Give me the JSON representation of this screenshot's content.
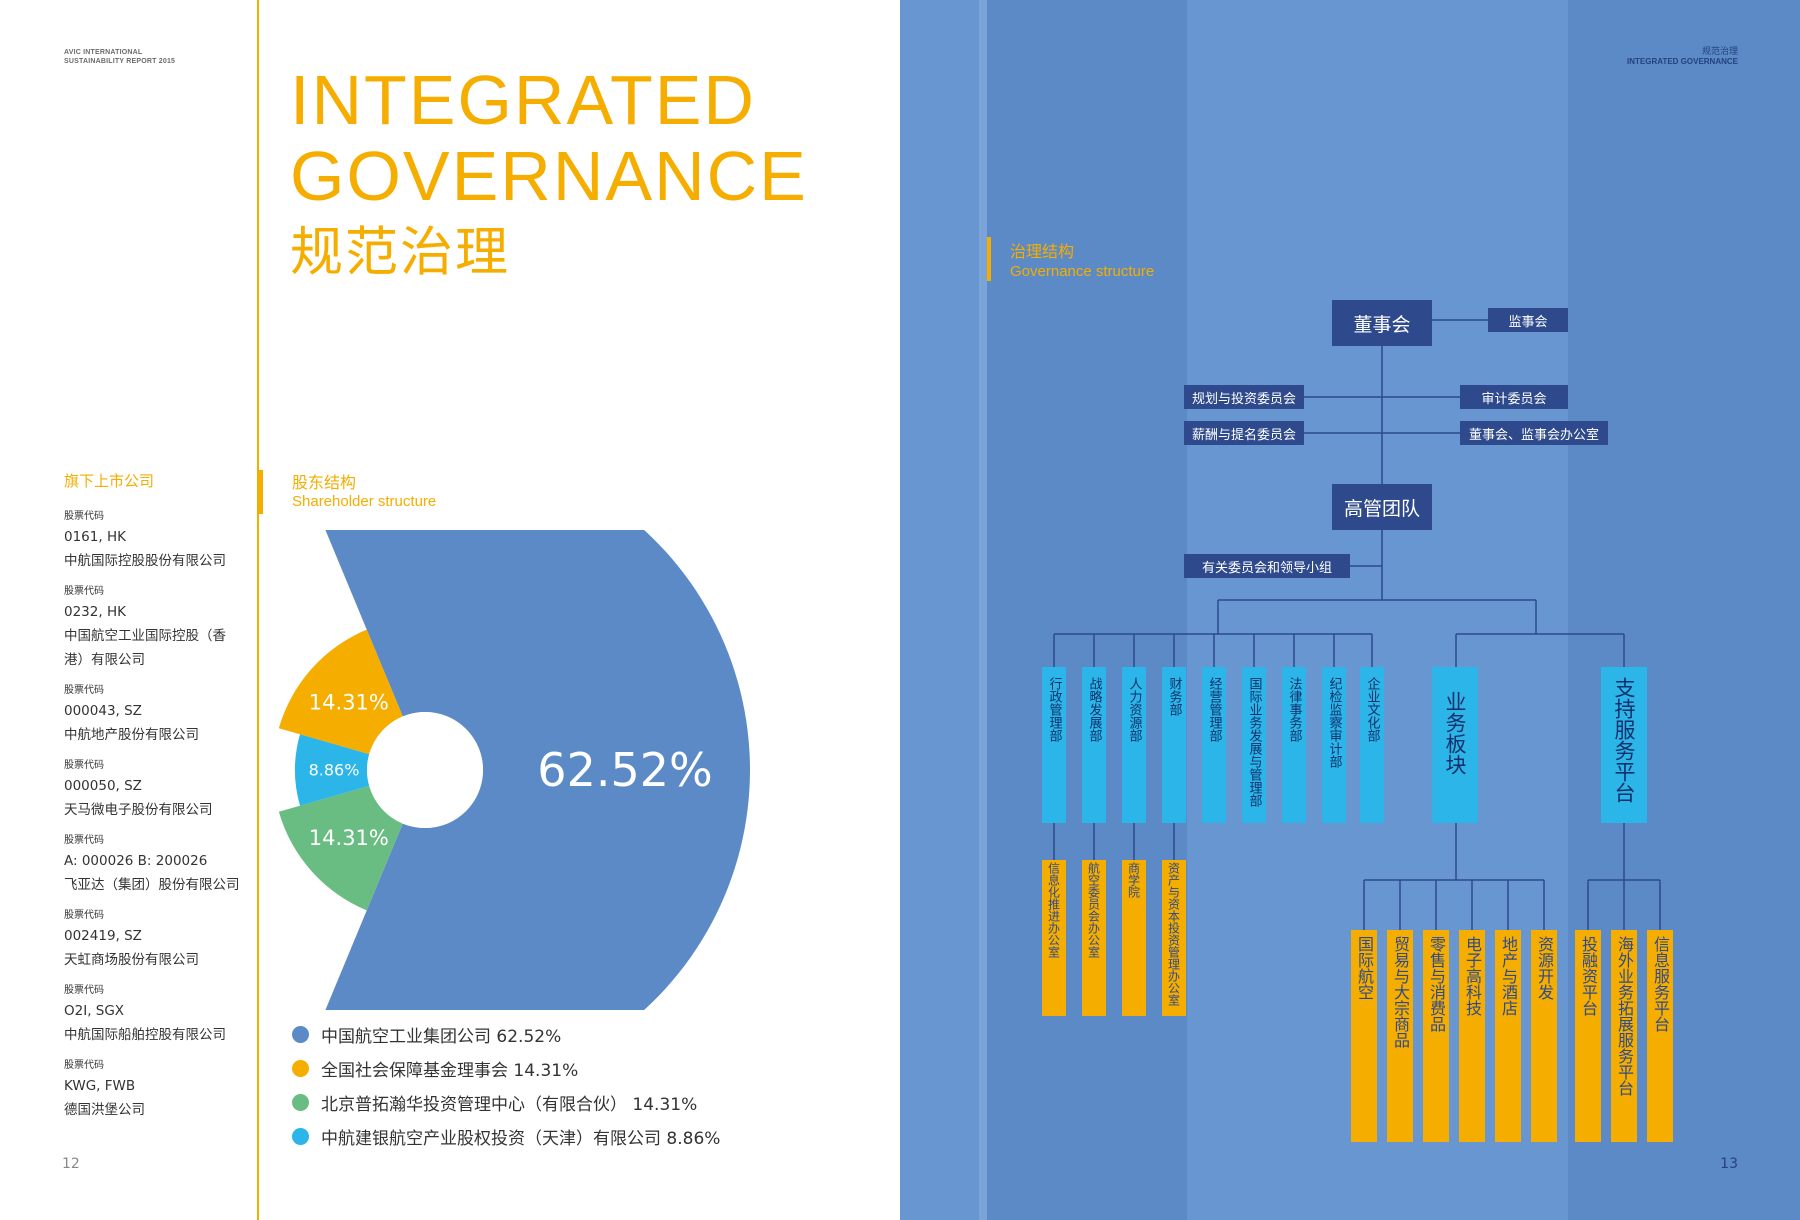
{
  "left_page": {
    "report_header": {
      "line1": "AVIC INTERNATIONAL",
      "line2": "SUSTAINABILITY REPORT 2015"
    },
    "title": {
      "en_line1": "INTEGRATED",
      "en_line2": "GOVERNANCE",
      "zh": "规范治理"
    },
    "listed_companies": {
      "heading": "旗下上市公司",
      "items": [
        {
          "label": "股票代码",
          "code": "0161, HK",
          "name": "中航国际控股股份有限公司"
        },
        {
          "label": "股票代码",
          "code": "0232, HK",
          "name": "中国航空工业国际控股（香港）有限公司"
        },
        {
          "label": "股票代码",
          "code": "000043, SZ",
          "name": "中航地产股份有限公司"
        },
        {
          "label": "股票代码",
          "code": "000050, SZ",
          "name": "天马微电子股份有限公司"
        },
        {
          "label": "股票代码",
          "code": "A: 000026  B: 200026",
          "name": "飞亚达（集团）股份有限公司"
        },
        {
          "label": "股票代码",
          "code": "002419, SZ",
          "name": "天虹商场股份有限公司"
        },
        {
          "label": "股票代码",
          "code": "O2I, SGX",
          "name": "中航国际船舶控股有限公司"
        },
        {
          "label": "股票代码",
          "code": "KWG, FWB",
          "name": "德国洪堡公司"
        }
      ]
    },
    "shareholder_section": {
      "zh": "股东结构",
      "en": "Shareholder structure"
    },
    "page_number": "12"
  },
  "chart_data": {
    "type": "pie",
    "title": "股东结构 Shareholder structure",
    "labels": [
      "中国航空工业集团公司",
      "全国社会保障基金理事会",
      "北京普拓瀚华投资管理中心（有限合伙）",
      "中航建银航空产业股权投资（天津）有限公司"
    ],
    "values": [
      62.52,
      14.31,
      14.31,
      8.86
    ],
    "value_labels": [
      "62.52%",
      "14.31%",
      "14.31%",
      "8.86%"
    ],
    "colors": [
      "#5b8ac6",
      "#f5ad00",
      "#6abd82",
      "#2cb5e8"
    ],
    "legend": [
      {
        "text": "中国航空工业集团公司 62.52%",
        "color": "#5b8ac6"
      },
      {
        "text": "全国社会保障基金理事会 14.31%",
        "color": "#f5ad00"
      },
      {
        "text": "北京普拓瀚华投资管理中心（有限合伙） 14.31%",
        "color": "#6abd82"
      },
      {
        "text": "中航建银航空产业股权投资（天津）有限公司 8.86%",
        "color": "#2cb5e8"
      }
    ],
    "legend_position": "bottom"
  },
  "right_page": {
    "header": {
      "zh": "规范治理",
      "en": "INTEGRATED GOVERNANCE"
    },
    "section": {
      "zh": "治理结构",
      "en": "Governance structure"
    },
    "org": {
      "board": "董事会",
      "supervisory": "监事会",
      "committees_left": [
        "规划与投资委员会",
        "薪酬与提名委员会"
      ],
      "committees_right": [
        "审计委员会",
        "董事会、监事会办公室"
      ],
      "management": "高管团队",
      "leading_groups": "有关委员会和领导小组",
      "departments": [
        "行政管理部",
        "战略发展部",
        "人力资源部",
        "财务部",
        "经营管理部",
        "国际业务发展与管理部",
        "法律事务部",
        "纪检监察审计部",
        "企业文化部"
      ],
      "business_segment": "业务板块",
      "support_platform": "支持服务平台",
      "sub_offices": [
        "信息化推进办公室",
        "航空委员会办公室",
        "商学院",
        "资产与资本投资管理办公室"
      ],
      "business_units": [
        "国际航空",
        "贸易与大宗商品",
        "零售与消费品",
        "电子高科技",
        "地产与酒店",
        "资源开发"
      ],
      "support_units": [
        "投融资平台",
        "海外业务拓展服务平台",
        "信息服务平台"
      ]
    },
    "page_number": "13"
  }
}
